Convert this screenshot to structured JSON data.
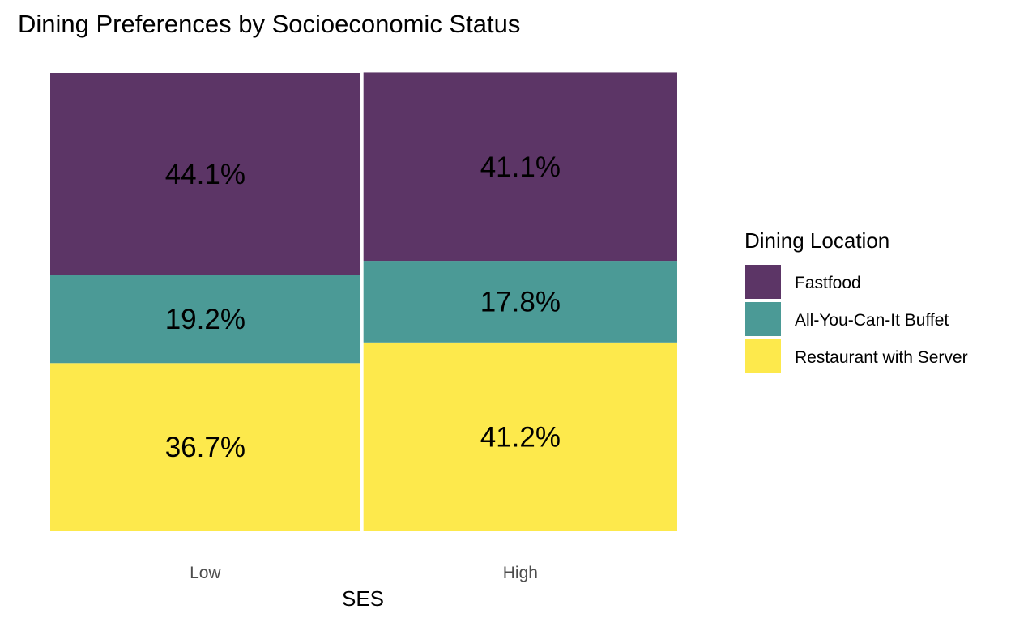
{
  "chart_data": {
    "type": "bar",
    "subtype": "mosaic-stacked-100",
    "title": "Dining Preferences by Socioeconomic Status",
    "xlabel": "SES",
    "ylabel": "",
    "categories": [
      "Low",
      "High"
    ],
    "category_widths": [
      0.497,
      0.503
    ],
    "series": [
      {
        "name": "Fastfood",
        "color": "#5c3566",
        "values": [
          44.1,
          41.1
        ],
        "labels": [
          "44.1%",
          "41.1%"
        ]
      },
      {
        "name": "All-You-Can-It Buffet",
        "color": "#4b9a96",
        "values": [
          19.2,
          17.8
        ],
        "labels": [
          "19.2%",
          "17.8%"
        ]
      },
      {
        "name": "Restaurant with Server",
        "color": "#fde94c",
        "values": [
          36.7,
          41.2
        ],
        "labels": [
          "36.7%",
          "41.2%"
        ]
      }
    ],
    "ylim": [
      0,
      100
    ],
    "grid": false,
    "legend": {
      "title": "Dining Location",
      "position": "right"
    }
  }
}
